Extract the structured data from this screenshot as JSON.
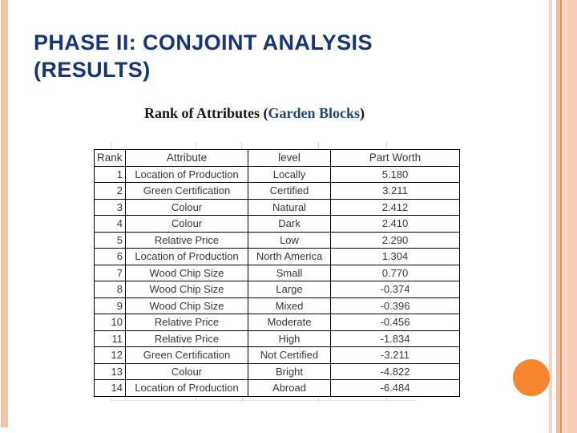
{
  "slide": {
    "title_line1": "PHASE II: CONJOINT ANALYSIS",
    "title_line2": "(RESULTS)",
    "subtitle": {
      "prefix": "Rank of Attributes (",
      "highlight": "Garden Blocks",
      "suffix": ")"
    }
  },
  "table": {
    "columns": [
      "Rank",
      "Attribute",
      "level",
      "Part Worth"
    ],
    "rows": [
      [
        "1",
        "Location of Production",
        "Locally",
        "5.180"
      ],
      [
        "2",
        "Green Certification",
        "Certified",
        "3.211"
      ],
      [
        "3",
        "Colour",
        "Natural",
        "2.412"
      ],
      [
        "4",
        "Colour",
        "Dark",
        "2.410"
      ],
      [
        "5",
        "Relative Price",
        "Low",
        "2.290"
      ],
      [
        "6",
        "Location of Production",
        "North America",
        "1.304"
      ],
      [
        "7",
        "Wood Chip Size",
        "Small",
        "0.770"
      ],
      [
        "8",
        "Wood Chip Size",
        "Large",
        "-0.374"
      ],
      [
        "9",
        "Wood Chip Size",
        "Mixed",
        "-0.396"
      ],
      [
        "10",
        "Relative Price",
        "Moderate",
        "-0.456"
      ],
      [
        "11",
        "Relative Price",
        "High",
        "-1.834"
      ],
      [
        "12",
        "Green Certification",
        "Not Certified",
        "-3.211"
      ],
      [
        "13",
        "Colour",
        "Bright",
        "-4.822"
      ],
      [
        "14",
        "Location of Production",
        "Abroad",
        "-6.484"
      ]
    ]
  },
  "colors": {
    "title": "#16357c",
    "subtitle_highlight": "#1f4579",
    "left_strip": "#f2c2a9",
    "right_band": "#fbccb6",
    "accent_line": "#e08f59",
    "circle": "#f8862e"
  }
}
